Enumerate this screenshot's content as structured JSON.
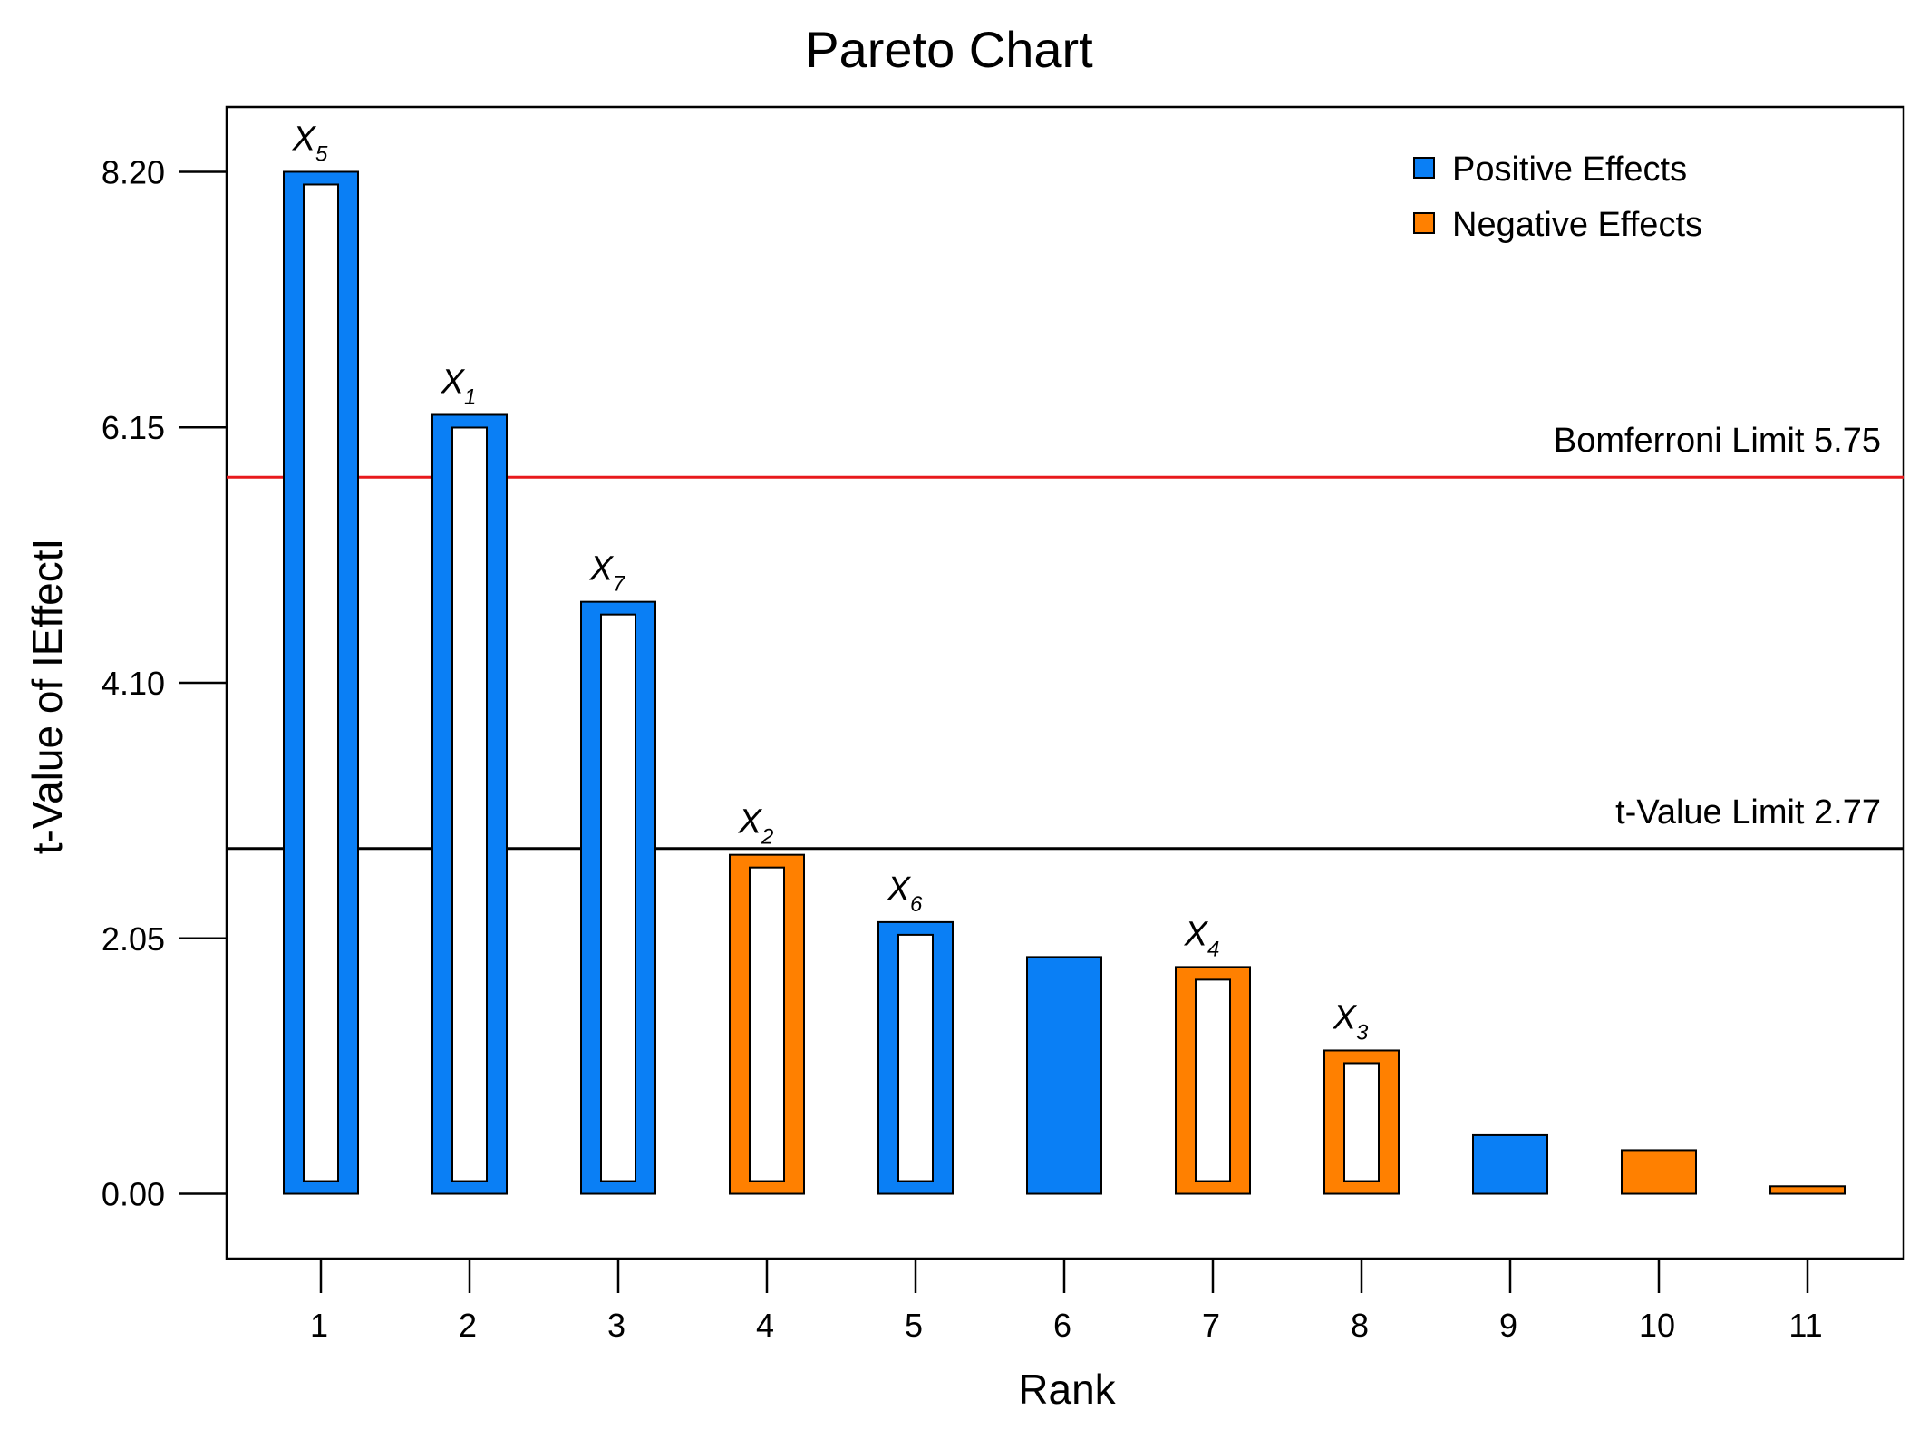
{
  "chart_data": {
    "type": "bar",
    "title": "Pareto Chart",
    "xlabel": "Rank",
    "ylabel": "t-Value of IEffectI",
    "categories": [
      "1",
      "2",
      "3",
      "4",
      "5",
      "6",
      "7",
      "8",
      "9",
      "10",
      "11"
    ],
    "values": [
      8.2,
      6.25,
      4.75,
      2.72,
      2.18,
      1.9,
      1.82,
      1.15,
      0.47,
      0.35,
      0.06
    ],
    "effect_sign": [
      "positive",
      "positive",
      "positive",
      "negative",
      "positive",
      "positive",
      "negative",
      "negative",
      "positive",
      "negative",
      "negative"
    ],
    "hollow": [
      true,
      true,
      true,
      true,
      true,
      false,
      true,
      true,
      false,
      false,
      false
    ],
    "bar_labels": [
      {
        "base": "X",
        "sub": "5"
      },
      {
        "base": "X",
        "sub": "1"
      },
      {
        "base": "X",
        "sub": "7"
      },
      {
        "base": "X",
        "sub": "2"
      },
      {
        "base": "X",
        "sub": "6"
      },
      null,
      {
        "base": "X",
        "sub": "4"
      },
      {
        "base": "X",
        "sub": "3"
      },
      null,
      null,
      null
    ],
    "yticks": [
      "0.00",
      "2.05",
      "4.10",
      "6.15",
      "8.20"
    ],
    "ylim": [
      -0.52,
      8.72
    ],
    "reference_lines": [
      {
        "label": "Bomferroni Limit 5.75",
        "value": 5.75,
        "color": "#e8191c"
      },
      {
        "label": "t-Value Limit 2.77",
        "value": 2.77,
        "color": "#000000"
      }
    ],
    "legend": {
      "position": "top-right",
      "entries": [
        {
          "label": "Positive Effects",
          "color": "#0a7ff5"
        },
        {
          "label": "Negative Effects",
          "color": "#ff8000"
        }
      ]
    },
    "colors": {
      "positive": "#0a7ff5",
      "negative": "#ff8000",
      "axis": "#000000"
    }
  }
}
